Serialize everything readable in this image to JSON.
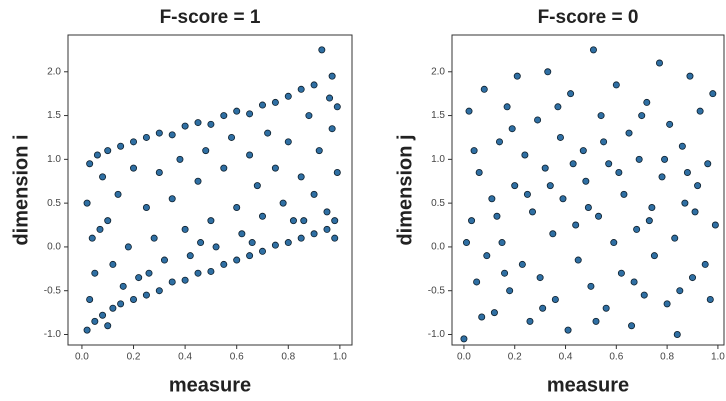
{
  "chart_data": [
    {
      "type": "scatter",
      "title": "F-score = 1",
      "xlabel": "measure",
      "ylabel": "dimension i",
      "color": "#2f6fa3",
      "edgecolor": "#0d1f2d",
      "xlim": [
        -0.054,
        1.047
      ],
      "ylim": [
        -1.12,
        2.42
      ],
      "xticks": [
        {
          "value": 0,
          "label": "0.0"
        },
        0.2,
        0.4,
        0.6,
        0.8,
        {
          "value": 1,
          "label": "1.0"
        }
      ],
      "yticks": [
        {
          "value": -1,
          "label": "-1.0"
        },
        -0.5,
        {
          "value": 0,
          "label": "0.0"
        },
        0.5,
        {
          "value": 1,
          "label": "1.0"
        },
        1.5,
        {
          "value": 2,
          "label": "2.0"
        }
      ],
      "x": [
        0.02,
        0.05,
        0.08,
        0.1,
        0.12,
        0.03,
        0.06,
        0.1,
        0.15,
        0.2,
        0.25,
        0.3,
        0.35,
        0.4,
        0.45,
        0.5,
        0.55,
        0.6,
        0.65,
        0.7,
        0.75,
        0.8,
        0.85,
        0.9,
        0.93,
        0.97,
        0.99,
        0.15,
        0.2,
        0.25,
        0.3,
        0.35,
        0.4,
        0.45,
        0.5,
        0.55,
        0.6,
        0.65,
        0.7,
        0.75,
        0.8,
        0.85,
        0.9,
        0.95,
        0.98,
        0.02,
        0.04,
        0.05,
        0.08,
        0.1,
        0.12,
        0.14,
        0.18,
        0.2,
        0.22,
        0.25,
        0.28,
        0.3,
        0.32,
        0.35,
        0.38,
        0.4,
        0.42,
        0.45,
        0.48,
        0.5,
        0.52,
        0.55,
        0.58,
        0.6,
        0.62,
        0.65,
        0.68,
        0.7,
        0.72,
        0.75,
        0.78,
        0.8,
        0.82,
        0.85,
        0.88,
        0.9,
        0.92,
        0.95,
        0.97,
        0.99,
        0.98,
        0.96,
        0.03,
        0.07,
        0.16,
        0.26,
        0.46,
        0.66,
        0.86
      ],
      "y": [
        -0.95,
        -0.85,
        -0.78,
        -0.9,
        -0.7,
        0.95,
        1.05,
        1.1,
        1.15,
        1.2,
        1.25,
        1.3,
        1.28,
        1.38,
        1.42,
        1.4,
        1.5,
        1.55,
        1.52,
        1.62,
        1.65,
        1.72,
        1.8,
        1.85,
        2.25,
        1.95,
        1.6,
        -0.65,
        -0.6,
        -0.55,
        -0.5,
        -0.4,
        -0.38,
        -0.3,
        -0.28,
        -0.2,
        -0.15,
        -0.1,
        -0.05,
        0.02,
        0.05,
        0.1,
        0.15,
        0.2,
        0.3,
        0.5,
        0.1,
        -0.3,
        0.8,
        0.3,
        -0.2,
        0.6,
        0.0,
        0.9,
        -0.35,
        0.45,
        0.1,
        0.85,
        -0.15,
        0.55,
        1.0,
        0.2,
        -0.1,
        0.75,
        1.1,
        0.3,
        0.0,
        0.9,
        1.25,
        0.45,
        0.15,
        1.05,
        0.7,
        0.35,
        1.3,
        0.9,
        0.5,
        1.2,
        0.3,
        0.8,
        1.5,
        0.6,
        1.1,
        0.4,
        1.35,
        0.85,
        0.1,
        1.7,
        -0.6,
        0.2,
        -0.45,
        -0.3,
        0.05,
        0.05,
        0.3
      ]
    },
    {
      "type": "scatter",
      "title": "F-score = 0",
      "xlabel": "measure",
      "ylabel": "dimension j",
      "color": "#2f6fa3",
      "edgecolor": "#0d1f2d",
      "xlim": [
        -0.047,
        1.024
      ],
      "ylim": [
        -1.12,
        2.42
      ],
      "xticks": [
        {
          "value": 0,
          "label": "0.0"
        },
        0.2,
        0.4,
        0.6,
        0.8,
        {
          "value": 1,
          "label": "1.0"
        }
      ],
      "yticks": [
        {
          "value": -1,
          "label": "-1.0"
        },
        -0.5,
        {
          "value": 0,
          "label": "0.0"
        },
        0.5,
        {
          "value": 1,
          "label": "1.0"
        },
        1.5,
        {
          "value": 2,
          "label": "2.0"
        }
      ],
      "x": [
        0.0,
        0.02,
        0.03,
        0.05,
        0.06,
        0.08,
        0.09,
        0.11,
        0.12,
        0.14,
        0.15,
        0.17,
        0.18,
        0.2,
        0.21,
        0.23,
        0.24,
        0.26,
        0.27,
        0.29,
        0.3,
        0.32,
        0.33,
        0.35,
        0.36,
        0.38,
        0.39,
        0.41,
        0.42,
        0.44,
        0.45,
        0.47,
        0.48,
        0.5,
        0.51,
        0.53,
        0.54,
        0.56,
        0.57,
        0.59,
        0.6,
        0.62,
        0.63,
        0.65,
        0.66,
        0.68,
        0.69,
        0.71,
        0.72,
        0.74,
        0.75,
        0.77,
        0.78,
        0.8,
        0.81,
        0.83,
        0.84,
        0.86,
        0.87,
        0.89,
        0.9,
        0.92,
        0.93,
        0.95,
        0.96,
        0.98,
        0.99,
        0.97,
        0.04,
        0.07,
        0.13,
        0.19,
        0.25,
        0.31,
        0.37,
        0.43,
        0.49,
        0.55,
        0.61,
        0.67,
        0.73,
        0.79,
        0.85,
        0.91,
        0.01,
        0.16,
        0.34,
        0.52,
        0.7,
        0.88
      ],
      "y": [
        -1.05,
        1.55,
        0.3,
        -0.4,
        0.85,
        1.8,
        -0.1,
        0.55,
        -0.75,
        1.2,
        0.05,
        1.6,
        -0.5,
        0.7,
        1.95,
        -0.2,
        1.05,
        -0.85,
        0.4,
        1.45,
        -0.35,
        0.9,
        2.0,
        0.15,
        -0.6,
        1.25,
        0.55,
        -0.95,
        1.75,
        0.25,
        -0.15,
        1.1,
        0.75,
        -0.45,
        2.25,
        0.35,
        1.5,
        -0.7,
        0.95,
        0.05,
        1.85,
        -0.3,
        0.6,
        1.3,
        -0.9,
        0.2,
        1.0,
        -0.55,
        1.65,
        0.45,
        -0.1,
        2.1,
        0.8,
        -0.65,
        1.4,
        0.1,
        -1.0,
        1.15,
        0.5,
        1.95,
        -0.35,
        0.7,
        1.55,
        -0.2,
        0.95,
        1.75,
        0.25,
        -0.6,
        1.1,
        -0.8,
        0.35,
        1.35,
        0.6,
        -0.7,
        1.6,
        0.95,
        0.45,
        1.2,
        0.85,
        -0.4,
        0.3,
        1.0,
        -0.5,
        0.4,
        0.05,
        -0.3,
        0.7,
        -0.85,
        1.5,
        0.85
      ]
    }
  ]
}
